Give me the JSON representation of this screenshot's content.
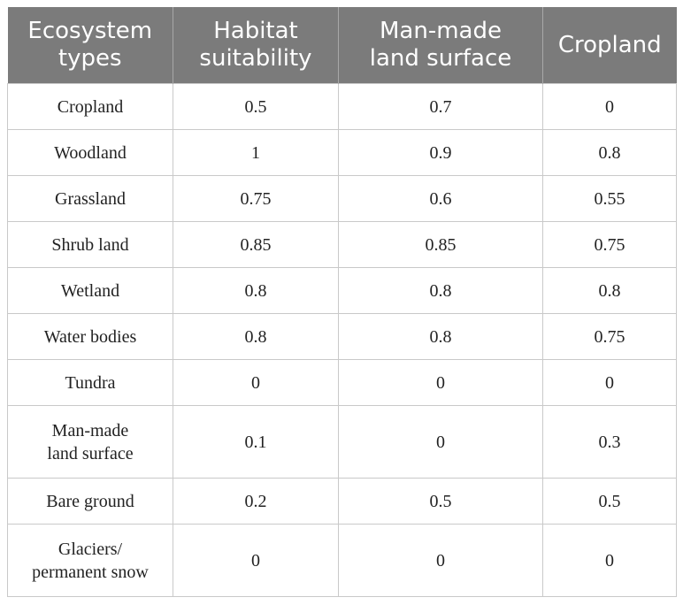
{
  "headers": [
    "Ecosystem types",
    "Habitat suitability",
    "Man-made land surface",
    "Cropland"
  ],
  "header_lines": [
    [
      "Ecosystem",
      "types"
    ],
    [
      "Habitat",
      "suitability"
    ],
    [
      "Man-made",
      "land surface"
    ],
    [
      "Cropland"
    ]
  ],
  "rows": [
    {
      "type": [
        "Cropland"
      ],
      "habitat": "0.5",
      "manmade": "0.7",
      "cropland": "0"
    },
    {
      "type": [
        "Woodland"
      ],
      "habitat": "1",
      "manmade": "0.9",
      "cropland": "0.8"
    },
    {
      "type": [
        "Grassland"
      ],
      "habitat": "0.75",
      "manmade": "0.6",
      "cropland": "0.55"
    },
    {
      "type": [
        "Shrub land"
      ],
      "habitat": "0.85",
      "manmade": "0.85",
      "cropland": "0.75"
    },
    {
      "type": [
        "Wetland"
      ],
      "habitat": "0.8",
      "manmade": "0.8",
      "cropland": "0.8"
    },
    {
      "type": [
        "Water bodies"
      ],
      "habitat": "0.8",
      "manmade": "0.8",
      "cropland": "0.75"
    },
    {
      "type": [
        "Tundra"
      ],
      "habitat": "0",
      "manmade": "0",
      "cropland": "0"
    },
    {
      "type": [
        "Man-made",
        "land surface"
      ],
      "habitat": "0.1",
      "manmade": "0",
      "cropland": "0.3"
    },
    {
      "type": [
        "Bare ground"
      ],
      "habitat": "0.2",
      "manmade": "0.5",
      "cropland": "0.5"
    },
    {
      "type": [
        "Glaciers/",
        "permanent snow"
      ],
      "habitat": "0",
      "manmade": "0",
      "cropland": "0"
    }
  ],
  "colors": {
    "header_bg": "#7b7b7b",
    "header_text": "#ffffff",
    "grid_line": "#c9c9c9"
  }
}
